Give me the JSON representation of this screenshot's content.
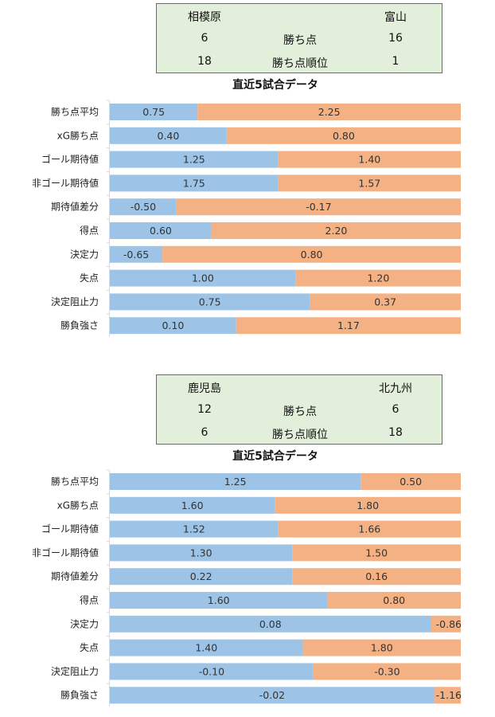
{
  "colors": {
    "left_bar": "#9dc3e6",
    "right_bar": "#f4b183",
    "box_bg": "#e2efda"
  },
  "matches": [
    {
      "info": {
        "left_team": "相模原",
        "right_team": "富山",
        "rows": [
          {
            "label": "勝ち点",
            "left": "6",
            "right": "16"
          },
          {
            "label": "勝ち点順位",
            "left": "18",
            "right": "1"
          }
        ]
      },
      "chart_title": "直近5試合データ",
      "chart_data": {
        "type": "bar",
        "orientation": "horizontal-100%-stacked",
        "categories": [
          "勝ち点平均",
          "xG勝ち点",
          "ゴール期待値",
          "非ゴール期待値",
          "期待値差分",
          "得点",
          "決定力",
          "失点",
          "決定阻止力",
          "勝負強さ"
        ],
        "series": [
          {
            "name": "相模原",
            "values": [
              0.75,
              0.4,
              1.25,
              1.75,
              -0.5,
              0.6,
              -0.65,
              1.0,
              0.75,
              0.1
            ],
            "labels": [
              "0.75",
              "0.40",
              "1.25",
              "1.75",
              "-0.50",
              "0.60",
              "-0.65",
              "1.00",
              "0.75",
              "0.10"
            ]
          },
          {
            "name": "富山",
            "values": [
              2.25,
              0.8,
              1.4,
              1.57,
              -0.17,
              2.2,
              0.8,
              1.2,
              0.37,
              1.17
            ],
            "labels": [
              "2.25",
              "0.80",
              "1.40",
              "1.57",
              "-0.17",
              "2.20",
              "0.80",
              "1.20",
              "0.37",
              "1.17"
            ]
          }
        ],
        "split_fraction": [
          0.25,
          0.333,
          0.48,
          0.48,
          0.19,
          0.29,
          0.15,
          0.53,
          0.57,
          0.36
        ]
      }
    },
    {
      "info": {
        "left_team": "鹿児島",
        "right_team": "北九州",
        "rows": [
          {
            "label": "勝ち点",
            "left": "12",
            "right": "6"
          },
          {
            "label": "勝ち点順位",
            "left": "6",
            "right": "18"
          }
        ]
      },
      "chart_title": "直近5試合データ",
      "chart_data": {
        "type": "bar",
        "orientation": "horizontal-100%-stacked",
        "categories": [
          "勝ち点平均",
          "xG勝ち点",
          "ゴール期待値",
          "非ゴール期待値",
          "期待値差分",
          "得点",
          "決定力",
          "失点",
          "決定阻止力",
          "勝負強さ"
        ],
        "series": [
          {
            "name": "鹿児島",
            "values": [
              1.25,
              1.6,
              1.52,
              1.3,
              0.22,
              1.6,
              0.08,
              1.4,
              -0.1,
              -0.02
            ],
            "labels": [
              "1.25",
              "1.60",
              "1.52",
              "1.30",
              "0.22",
              "1.60",
              "0.08",
              "1.40",
              "-0.10",
              "-0.02"
            ]
          },
          {
            "name": "北九州",
            "values": [
              0.5,
              1.8,
              1.66,
              1.5,
              0.16,
              0.8,
              -0.86,
              1.8,
              -0.3,
              -1.16
            ],
            "labels": [
              "0.50",
              "1.80",
              "1.66",
              "1.50",
              "0.16",
              "0.80",
              "-0.86",
              "1.80",
              "-0.30",
              "-1.16"
            ]
          }
        ],
        "split_fraction": [
          0.715,
          0.47,
          0.48,
          0.52,
          0.52,
          0.62,
          0.915,
          0.55,
          0.58,
          0.925
        ]
      }
    }
  ]
}
